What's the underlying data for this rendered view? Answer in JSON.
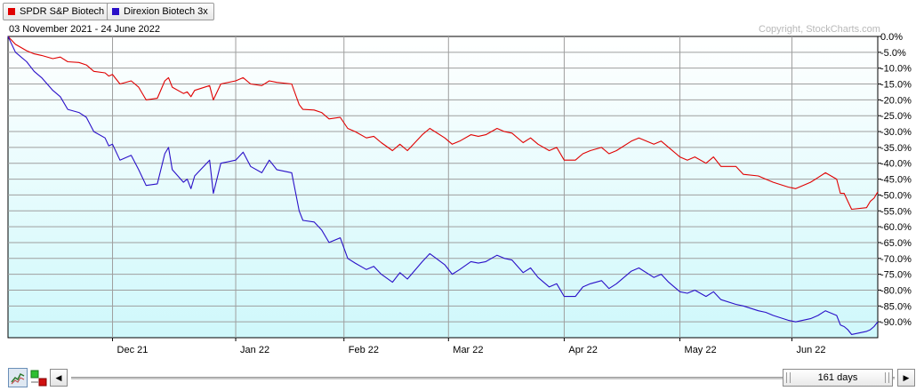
{
  "legend": [
    {
      "label": "SPDR S&P Biotech",
      "color": "#e00000"
    },
    {
      "label": "Direxion Biotech 3x",
      "color": "#2a10c8"
    }
  ],
  "date_range": "03 November 2021 - 24 June 2022",
  "copyright": "Copyright, StockCharts.com",
  "colors": {
    "plot_gradient_top": "#ffffff",
    "plot_gradient_bottom": "#cff8fb",
    "gridline": "#9e9e9e"
  },
  "chart_data": {
    "type": "line",
    "x_range": [
      "2021-11-03",
      "2022-06-24"
    ],
    "ylim": [
      -95,
      0
    ],
    "y_unit": "%",
    "y_ticks": [
      "0.0%",
      "-5.0%",
      "-10.0%",
      "-15.0%",
      "-20.0%",
      "-25.0%",
      "-30.0%",
      "-35.0%",
      "-40.0%",
      "-45.0%",
      "-50.0%",
      "-55.0%",
      "-60.0%",
      "-65.0%",
      "-70.0%",
      "-75.0%",
      "-80.0%",
      "-85.0%",
      "-90.0%"
    ],
    "x_ticks": [
      {
        "label": "Dec 21",
        "date": "2021-12-01"
      },
      {
        "label": "Jan 22",
        "date": "2022-01-03"
      },
      {
        "label": "Feb 22",
        "date": "2022-02-01"
      },
      {
        "label": "Mar 22",
        "date": "2022-03-01"
      },
      {
        "label": "Apr 22",
        "date": "2022-04-01"
      },
      {
        "label": "May 22",
        "date": "2022-05-02"
      },
      {
        "label": "Jun 22",
        "date": "2022-06-01"
      }
    ],
    "grid": true,
    "legend_position": "top-left",
    "series": [
      {
        "name": "SPDR S&P Biotech",
        "color": "#e00000",
        "points": [
          [
            "2021-11-03",
            0
          ],
          [
            "2021-11-05",
            -2.5
          ],
          [
            "2021-11-08",
            -4.5
          ],
          [
            "2021-11-10",
            -5.5
          ],
          [
            "2021-11-12",
            -6
          ],
          [
            "2021-11-15",
            -7
          ],
          [
            "2021-11-17",
            -6.5
          ],
          [
            "2021-11-19",
            -8
          ],
          [
            "2021-11-22",
            -8.2
          ],
          [
            "2021-11-24",
            -9
          ],
          [
            "2021-11-26",
            -11
          ],
          [
            "2021-11-29",
            -11.5
          ],
          [
            "2021-11-30",
            -12.5
          ],
          [
            "2021-12-01",
            -12
          ],
          [
            "2021-12-03",
            -15
          ],
          [
            "2021-12-06",
            -14
          ],
          [
            "2021-12-08",
            -16
          ],
          [
            "2021-12-10",
            -20
          ],
          [
            "2021-12-13",
            -19.5
          ],
          [
            "2021-12-15",
            -14
          ],
          [
            "2021-12-16",
            -13
          ],
          [
            "2021-12-17",
            -16
          ],
          [
            "2021-12-20",
            -18
          ],
          [
            "2021-12-21",
            -17.5
          ],
          [
            "2021-12-22",
            -19
          ],
          [
            "2021-12-23",
            -17
          ],
          [
            "2021-12-27",
            -15.5
          ],
          [
            "2021-12-28",
            -20
          ],
          [
            "2021-12-30",
            -15
          ],
          [
            "2022-01-03",
            -14
          ],
          [
            "2022-01-05",
            -13
          ],
          [
            "2022-01-07",
            -15
          ],
          [
            "2022-01-10",
            -15.5
          ],
          [
            "2022-01-12",
            -14
          ],
          [
            "2022-01-14",
            -14.5
          ],
          [
            "2022-01-18",
            -15
          ],
          [
            "2022-01-20",
            -21.5
          ],
          [
            "2022-01-21",
            -23
          ],
          [
            "2022-01-24",
            -23.2
          ],
          [
            "2022-01-26",
            -24
          ],
          [
            "2022-01-28",
            -26
          ],
          [
            "2022-01-31",
            -25.5
          ],
          [
            "2022-02-02",
            -29
          ],
          [
            "2022-02-04",
            -30
          ],
          [
            "2022-02-07",
            -32
          ],
          [
            "2022-02-09",
            -31.5
          ],
          [
            "2022-02-11",
            -33.5
          ],
          [
            "2022-02-14",
            -36
          ],
          [
            "2022-02-16",
            -34
          ],
          [
            "2022-02-18",
            -36
          ],
          [
            "2022-02-22",
            -31
          ],
          [
            "2022-02-24",
            -29
          ],
          [
            "2022-02-28",
            -32
          ],
          [
            "2022-03-02",
            -34
          ],
          [
            "2022-03-04",
            -33
          ],
          [
            "2022-03-07",
            -31
          ],
          [
            "2022-03-09",
            -31.5
          ],
          [
            "2022-03-11",
            -31
          ],
          [
            "2022-03-14",
            -29
          ],
          [
            "2022-03-16",
            -30
          ],
          [
            "2022-03-18",
            -30.5
          ],
          [
            "2022-03-21",
            -33.5
          ],
          [
            "2022-03-23",
            -32
          ],
          [
            "2022-03-25",
            -34
          ],
          [
            "2022-03-28",
            -36
          ],
          [
            "2022-03-30",
            -35
          ],
          [
            "2022-04-01",
            -39
          ],
          [
            "2022-04-04",
            -39
          ],
          [
            "2022-04-06",
            -37
          ],
          [
            "2022-04-08",
            -36
          ],
          [
            "2022-04-11",
            -35
          ],
          [
            "2022-04-13",
            -37
          ],
          [
            "2022-04-15",
            -36
          ],
          [
            "2022-04-19",
            -33
          ],
          [
            "2022-04-21",
            -32
          ],
          [
            "2022-04-25",
            -34
          ],
          [
            "2022-04-27",
            -33
          ],
          [
            "2022-04-29",
            -35
          ],
          [
            "2022-05-02",
            -38
          ],
          [
            "2022-05-04",
            -39
          ],
          [
            "2022-05-06",
            -38
          ],
          [
            "2022-05-09",
            -40
          ],
          [
            "2022-05-11",
            -38
          ],
          [
            "2022-05-13",
            -41
          ],
          [
            "2022-05-17",
            -41
          ],
          [
            "2022-05-19",
            -43.5
          ],
          [
            "2022-05-23",
            -44
          ],
          [
            "2022-05-25",
            -45
          ],
          [
            "2022-05-27",
            -46
          ],
          [
            "2022-05-31",
            -47.5
          ],
          [
            "2022-06-02",
            -48
          ],
          [
            "2022-06-06",
            -46
          ],
          [
            "2022-06-08",
            -44.5
          ],
          [
            "2022-06-10",
            -43
          ],
          [
            "2022-06-13",
            -45
          ],
          [
            "2022-06-14",
            -49.5
          ],
          [
            "2022-06-15",
            -49.5
          ],
          [
            "2022-06-16",
            -52
          ],
          [
            "2022-06-17",
            -54.5
          ],
          [
            "2022-06-21",
            -54
          ],
          [
            "2022-06-22",
            -52
          ],
          [
            "2022-06-23",
            -51
          ],
          [
            "2022-06-24",
            -49
          ]
        ]
      },
      {
        "name": "Direxion Biotech 3x",
        "color": "#2a10c8",
        "points": [
          [
            "2021-11-03",
            0
          ],
          [
            "2021-11-05",
            -5
          ],
          [
            "2021-11-08",
            -8
          ],
          [
            "2021-11-10",
            -11
          ],
          [
            "2021-11-12",
            -13
          ],
          [
            "2021-11-15",
            -17
          ],
          [
            "2021-11-17",
            -19
          ],
          [
            "2021-11-19",
            -23
          ],
          [
            "2021-11-22",
            -24
          ],
          [
            "2021-11-24",
            -25.5
          ],
          [
            "2021-11-26",
            -30
          ],
          [
            "2021-11-29",
            -32
          ],
          [
            "2021-11-30",
            -34.5
          ],
          [
            "2021-12-01",
            -34
          ],
          [
            "2021-12-03",
            -39
          ],
          [
            "2021-12-06",
            -37.5
          ],
          [
            "2021-12-08",
            -42
          ],
          [
            "2021-12-10",
            -47
          ],
          [
            "2021-12-13",
            -46.5
          ],
          [
            "2021-12-15",
            -37
          ],
          [
            "2021-12-16",
            -35
          ],
          [
            "2021-12-17",
            -42
          ],
          [
            "2021-12-20",
            -46
          ],
          [
            "2021-12-21",
            -45
          ],
          [
            "2021-12-22",
            -48
          ],
          [
            "2021-12-23",
            -44
          ],
          [
            "2021-12-27",
            -39
          ],
          [
            "2021-12-28",
            -49.5
          ],
          [
            "2021-12-30",
            -40
          ],
          [
            "2022-01-03",
            -39
          ],
          [
            "2022-01-05",
            -36.5
          ],
          [
            "2022-01-07",
            -41
          ],
          [
            "2022-01-10",
            -43
          ],
          [
            "2022-01-12",
            -39
          ],
          [
            "2022-01-14",
            -42
          ],
          [
            "2022-01-18",
            -43
          ],
          [
            "2022-01-20",
            -55
          ],
          [
            "2022-01-21",
            -58
          ],
          [
            "2022-01-24",
            -58.5
          ],
          [
            "2022-01-26",
            -61
          ],
          [
            "2022-01-28",
            -65
          ],
          [
            "2022-01-31",
            -63.5
          ],
          [
            "2022-02-02",
            -70
          ],
          [
            "2022-02-04",
            -71.5
          ],
          [
            "2022-02-07",
            -73.5
          ],
          [
            "2022-02-09",
            -72.5
          ],
          [
            "2022-02-11",
            -75
          ],
          [
            "2022-02-14",
            -77.5
          ],
          [
            "2022-02-16",
            -74.5
          ],
          [
            "2022-02-18",
            -76.5
          ],
          [
            "2022-02-22",
            -71
          ],
          [
            "2022-02-24",
            -68.5
          ],
          [
            "2022-02-28",
            -72
          ],
          [
            "2022-03-02",
            -75
          ],
          [
            "2022-03-04",
            -73.5
          ],
          [
            "2022-03-07",
            -71
          ],
          [
            "2022-03-09",
            -71.5
          ],
          [
            "2022-03-11",
            -71
          ],
          [
            "2022-03-14",
            -69
          ],
          [
            "2022-03-16",
            -70
          ],
          [
            "2022-03-18",
            -70.5
          ],
          [
            "2022-03-21",
            -74.5
          ],
          [
            "2022-03-23",
            -73
          ],
          [
            "2022-03-25",
            -76
          ],
          [
            "2022-03-28",
            -79
          ],
          [
            "2022-03-30",
            -78
          ],
          [
            "2022-04-01",
            -82
          ],
          [
            "2022-04-04",
            -82
          ],
          [
            "2022-04-06",
            -79
          ],
          [
            "2022-04-08",
            -78
          ],
          [
            "2022-04-11",
            -77
          ],
          [
            "2022-04-13",
            -79.5
          ],
          [
            "2022-04-15",
            -78
          ],
          [
            "2022-04-19",
            -74
          ],
          [
            "2022-04-21",
            -73
          ],
          [
            "2022-04-25",
            -76
          ],
          [
            "2022-04-27",
            -75
          ],
          [
            "2022-04-29",
            -77.5
          ],
          [
            "2022-05-02",
            -80.5
          ],
          [
            "2022-05-04",
            -81
          ],
          [
            "2022-05-06",
            -80
          ],
          [
            "2022-05-09",
            -82
          ],
          [
            "2022-05-11",
            -80.5
          ],
          [
            "2022-05-13",
            -83
          ],
          [
            "2022-05-17",
            -84.5
          ],
          [
            "2022-05-19",
            -85
          ],
          [
            "2022-05-23",
            -86.5
          ],
          [
            "2022-05-25",
            -87
          ],
          [
            "2022-05-27",
            -88
          ],
          [
            "2022-05-31",
            -89.5
          ],
          [
            "2022-06-02",
            -90
          ],
          [
            "2022-06-06",
            -89
          ],
          [
            "2022-06-08",
            -88
          ],
          [
            "2022-06-10",
            -86.5
          ],
          [
            "2022-06-13",
            -88
          ],
          [
            "2022-06-14",
            -91
          ],
          [
            "2022-06-15",
            -91.5
          ],
          [
            "2022-06-16",
            -92.5
          ],
          [
            "2022-06-17",
            -94
          ],
          [
            "2022-06-21",
            -93
          ],
          [
            "2022-06-22",
            -92.5
          ],
          [
            "2022-06-23",
            -91.5
          ],
          [
            "2022-06-24",
            -90
          ]
        ]
      }
    ]
  },
  "toolbar": {
    "chart_type_icon": "line-chart-icon",
    "compare_icon": "compare-color-icon",
    "scroll_left_glyph": "◀",
    "scroll_right_glyph": "▶",
    "range_label": "161 days"
  }
}
